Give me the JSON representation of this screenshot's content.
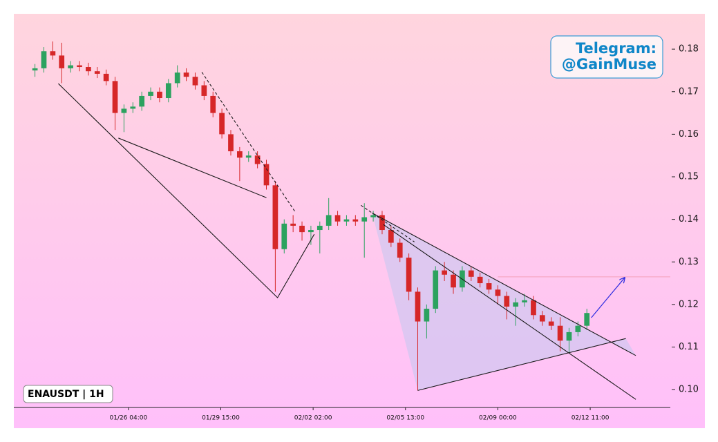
{
  "chart_data": {
    "type": "candlestick",
    "watermark": [
      "Telegram:",
      "@GainMuse"
    ],
    "label": "ENAUSDT | 1H",
    "up_color": "#2ca25f",
    "down_color": "#d62728",
    "xlim": [
      "01/21 21:00",
      "02/15 11:00"
    ],
    "xticks": [
      "01/26 04:00",
      "01/29 15:00",
      "02/02 02:00",
      "02/05 13:00",
      "02/09 00:00",
      "02/12 11:00"
    ],
    "ylim": [
      0.0958,
      0.1883
    ],
    "yticks": [
      {
        "value": 0.1,
        "label": "0.10"
      },
      0.11,
      0.12,
      0.13,
      0.14,
      0.15,
      0.16,
      0.17,
      0.18
    ],
    "x": [
      "01/22 16:00",
      "01/23 00:00",
      "01/23 08:00",
      "01/23 16:00",
      "01/24 00:00",
      "01/24 08:00",
      "01/24 16:00",
      "01/25 00:00",
      "01/25 08:00",
      "01/25 16:00",
      "01/26 00:00",
      "01/26 08:00",
      "01/26 16:00",
      "01/27 00:00",
      "01/27 08:00",
      "01/27 16:00",
      "01/28 00:00",
      "01/28 08:00",
      "01/28 16:00",
      "01/29 00:00",
      "01/29 08:00",
      "01/29 16:00",
      "01/30 00:00",
      "01/30 08:00",
      "01/30 16:00",
      "01/31 00:00",
      "01/31 08:00",
      "01/31 16:00",
      "02/01 00:00",
      "02/01 08:00",
      "02/01 16:00",
      "02/02 00:00",
      "02/02 08:00",
      "02/02 16:00",
      "02/03 00:00",
      "02/03 08:00",
      "02/03 16:00",
      "02/04 00:00",
      "02/04 08:00",
      "02/04 16:00",
      "02/05 00:00",
      "02/05 08:00",
      "02/05 16:00",
      "02/06 00:00",
      "02/06 08:00",
      "02/06 16:00",
      "02/07 00:00",
      "02/07 08:00",
      "02/07 16:00",
      "02/08 00:00",
      "02/08 08:00",
      "02/08 16:00",
      "02/09 00:00",
      "02/09 08:00",
      "02/09 16:00",
      "02/10 00:00",
      "02/10 08:00",
      "02/10 16:00",
      "02/11 00:00",
      "02/11 08:00",
      "02/11 16:00",
      "02/12 00:00",
      "02/12 08:00"
    ],
    "open": [
      0.175,
      0.1755,
      0.1795,
      0.1785,
      0.1755,
      0.1762,
      0.1758,
      0.1748,
      0.1742,
      0.1725,
      0.165,
      0.166,
      0.1665,
      0.169,
      0.17,
      0.1685,
      0.172,
      0.1745,
      0.1735,
      0.1715,
      0.169,
      0.165,
      0.16,
      0.156,
      0.1545,
      0.155,
      0.153,
      0.148,
      0.133,
      0.139,
      0.1385,
      0.137,
      0.1375,
      0.1385,
      0.141,
      0.1395,
      0.14,
      0.1395,
      0.1405,
      0.141,
      0.1375,
      0.1345,
      0.131,
      0.123,
      0.116,
      0.119,
      0.128,
      0.127,
      0.124,
      0.128,
      0.1265,
      0.125,
      0.1235,
      0.122,
      0.1195,
      0.1205,
      0.121,
      0.1175,
      0.116,
      0.115,
      0.1115,
      0.1135,
      0.115
    ],
    "high": [
      0.1765,
      0.1805,
      0.1818,
      0.1815,
      0.1772,
      0.1772,
      0.1768,
      0.1758,
      0.1752,
      0.1735,
      0.167,
      0.1675,
      0.17,
      0.171,
      0.171,
      0.173,
      0.1762,
      0.1755,
      0.1745,
      0.1725,
      0.17,
      0.166,
      0.161,
      0.157,
      0.156,
      0.156,
      0.154,
      0.149,
      0.14,
      0.141,
      0.1395,
      0.1385,
      0.1395,
      0.145,
      0.142,
      0.141,
      0.141,
      0.1438,
      0.142,
      0.142,
      0.1385,
      0.1355,
      0.132,
      0.124,
      0.12,
      0.129,
      0.13,
      0.128,
      0.129,
      0.129,
      0.1275,
      0.126,
      0.1245,
      0.123,
      0.1215,
      0.1225,
      0.122,
      0.1185,
      0.117,
      0.117,
      0.1145,
      0.116,
      0.119
    ],
    "low": [
      0.1735,
      0.1745,
      0.1775,
      0.172,
      0.1745,
      0.1748,
      0.1738,
      0.1732,
      0.1715,
      0.161,
      0.1605,
      0.165,
      0.1655,
      0.168,
      0.1675,
      0.1675,
      0.171,
      0.1725,
      0.1705,
      0.168,
      0.164,
      0.159,
      0.155,
      0.149,
      0.1535,
      0.152,
      0.147,
      0.123,
      0.132,
      0.137,
      0.135,
      0.134,
      0.132,
      0.1375,
      0.1385,
      0.1385,
      0.1385,
      0.131,
      0.1395,
      0.1365,
      0.1335,
      0.13,
      0.121,
      0.0998,
      0.112,
      0.118,
      0.1255,
      0.1225,
      0.123,
      0.1255,
      0.124,
      0.1225,
      0.12,
      0.1165,
      0.115,
      0.1195,
      0.1165,
      0.115,
      0.114,
      0.109,
      0.1085,
      0.1125,
      0.114
    ],
    "close": [
      0.1755,
      0.1795,
      0.1785,
      0.1755,
      0.1762,
      0.1758,
      0.1748,
      0.1742,
      0.1725,
      0.165,
      0.166,
      0.1665,
      0.169,
      0.17,
      0.1685,
      0.172,
      0.1745,
      0.1735,
      0.1715,
      0.169,
      0.165,
      0.16,
      0.156,
      0.1545,
      0.155,
      0.153,
      0.148,
      0.133,
      0.139,
      0.1385,
      0.137,
      0.1375,
      0.1385,
      0.141,
      0.1395,
      0.14,
      0.1395,
      0.1405,
      0.141,
      0.1375,
      0.1345,
      0.131,
      0.123,
      0.116,
      0.119,
      0.128,
      0.127,
      0.124,
      0.128,
      0.1265,
      0.125,
      0.1235,
      0.122,
      0.1195,
      0.1205,
      0.121,
      0.1175,
      0.116,
      0.115,
      0.1115,
      0.1135,
      0.115,
      0.118
    ],
    "shaded_area": {
      "x": [
        "02/04 07:00",
        "02/06 00:00",
        "02/13 19:00",
        "02/14 04:00"
      ],
      "y": [
        0.1415,
        0.0998,
        0.112,
        0.108
      ],
      "color": "#c8c8f0"
    },
    "lines": [
      {
        "x": [
          "01/23 13:00",
          "01/31 18:00",
          "02/02 03:00"
        ],
        "y": [
          0.1719,
          0.1216,
          0.1365
        ],
        "color": "#1a1a1a",
        "dashed": false
      },
      {
        "x": [
          "01/25 19:00",
          "01/31 08:00"
        ],
        "y": [
          0.1591,
          0.1451
        ],
        "color": "#1a1a1a",
        "dashed": false
      },
      {
        "x": [
          "01/28 22:00",
          "02/01 10:00"
        ],
        "y": [
          0.1746,
          0.1417
        ],
        "color": "#1a1a1a",
        "dashed": true
      },
      {
        "x": [
          "02/03 21:00",
          "02/05 21:00"
        ],
        "y": [
          0.1433,
          0.1347
        ],
        "color": "#1a1a1a",
        "dashed": true
      },
      {
        "x": [
          "02/04 07:00",
          "02/14 04:00"
        ],
        "y": [
          0.1415,
          0.108
        ],
        "color": "#1a1a1a",
        "dashed": false
      },
      {
        "x": [
          "02/04 17:00",
          "02/14 04:00"
        ],
        "y": [
          0.1388,
          0.0977
        ],
        "color": "#1a1a1a",
        "dashed": false
      },
      {
        "x": [
          "02/06 00:00",
          "02/13 19:00"
        ],
        "y": [
          0.0998,
          0.112
        ],
        "color": "#1a1a1a",
        "dashed": false
      }
    ],
    "hline": {
      "y": 0.1265,
      "x": [
        "02/09 00:00",
        "02/15 11:00"
      ],
      "color": "#f4a0b8"
    },
    "arrow": {
      "x": [
        "02/12 12:00",
        "02/13 18:00"
      ],
      "y": [
        0.1169,
        0.1263
      ],
      "color": "#2a2ae0"
    }
  }
}
